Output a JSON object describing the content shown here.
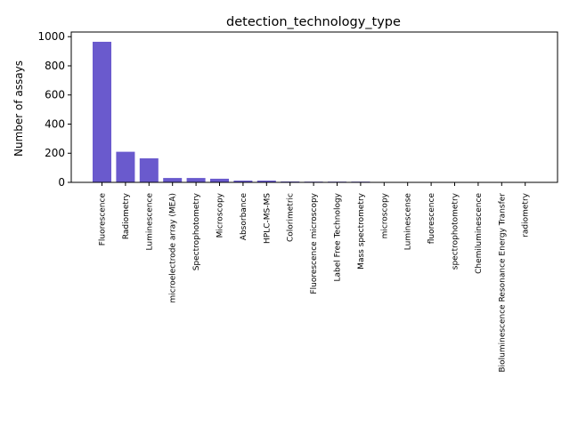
{
  "chart_data": {
    "type": "bar",
    "title": "detection_technology_type",
    "xlabel": "",
    "ylabel": "Number of assays",
    "ylim": [
      0,
      1000
    ],
    "yticks": [
      0,
      200,
      400,
      600,
      800,
      1000
    ],
    "grid": false,
    "bar_color": "#6a5acd",
    "categories": [
      "Fluorescence",
      "Radiometry",
      "Luminescence",
      "microelectrode array (MEA)",
      "Spectrophotometry",
      "Microscopy",
      "Absorbance",
      "HPLC-MS-MS",
      "Colorimetric",
      "Fluorescence microscopy",
      "Label Free Technology",
      "Mass spectrometry",
      "microscopy",
      "Luminescense",
      "fluorescence",
      "spectrophotometry",
      "Chemiluminescence",
      "Bioluminescence Resonance Energy Transfer",
      "radiometry"
    ],
    "values": [
      965,
      210,
      165,
      30,
      30,
      25,
      12,
      12,
      6,
      5,
      5,
      5,
      2,
      1,
      1,
      1,
      1,
      1,
      1
    ]
  }
}
